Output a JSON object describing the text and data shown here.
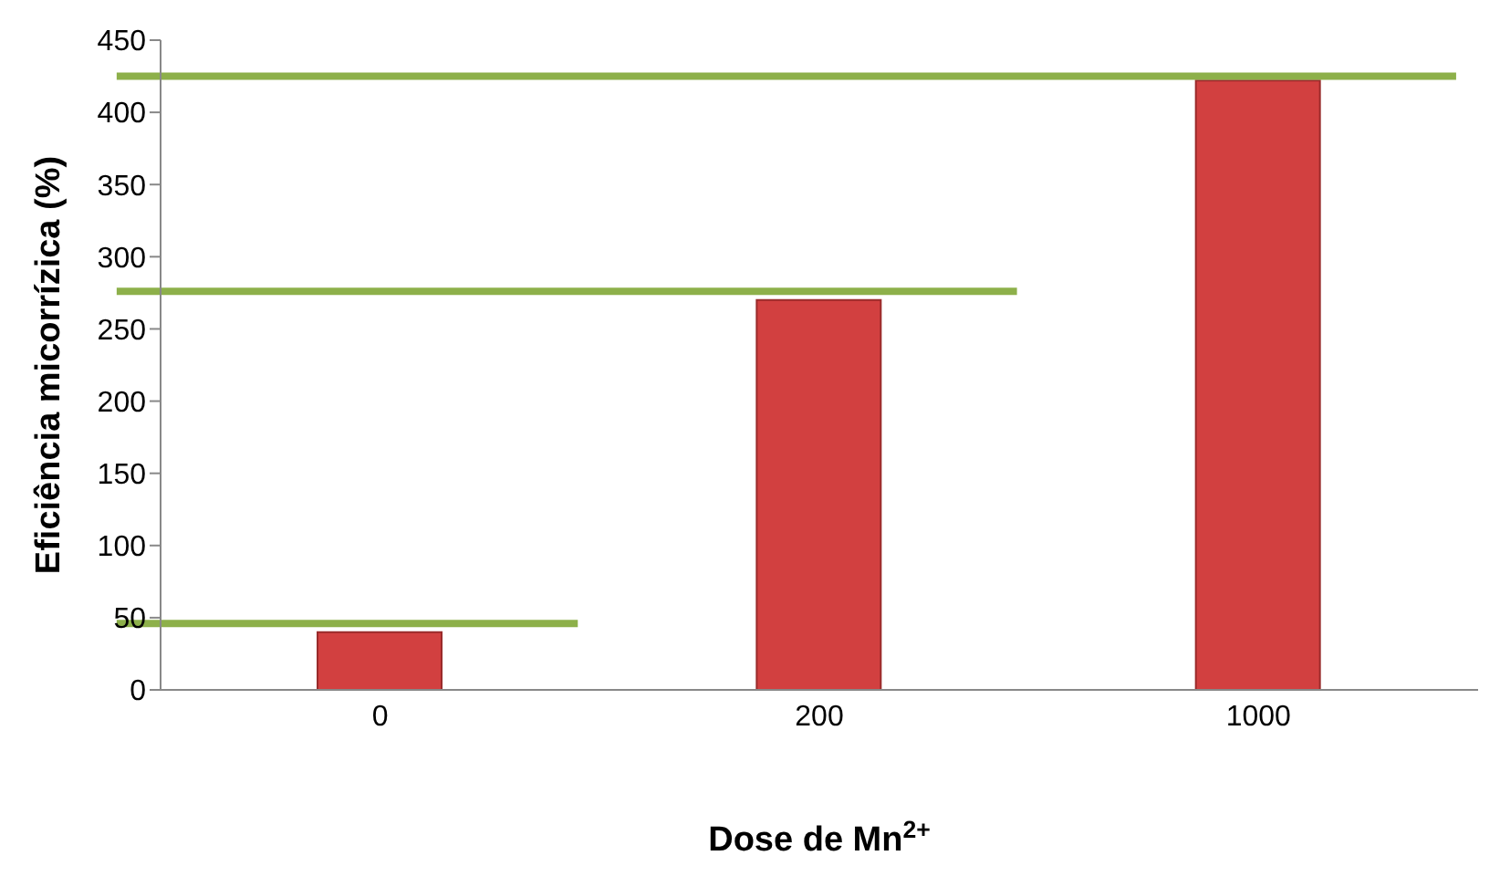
{
  "chart_data": {
    "type": "bar",
    "xlabel": "Dose de Mn$^{2+}$",
    "ylabel": "Eficiência micorrízica (%)",
    "categories": [
      "0",
      "200",
      "1000"
    ],
    "values": [
      40,
      270,
      422
    ],
    "color": "#d24040",
    "ylim": [
      0,
      450
    ],
    "yticks": [
      0,
      50,
      100,
      150,
      200,
      250,
      300,
      350,
      400,
      450
    ],
    "ref_lines": [
      {
        "axis": "y",
        "value": 46,
        "color": "#8db04a"
      },
      {
        "axis": "y",
        "value": 276,
        "color": "#8db04a"
      },
      {
        "axis": "y",
        "value": 425,
        "color": "#8db04a"
      }
    ],
    "grid": false,
    "legend": false
  }
}
